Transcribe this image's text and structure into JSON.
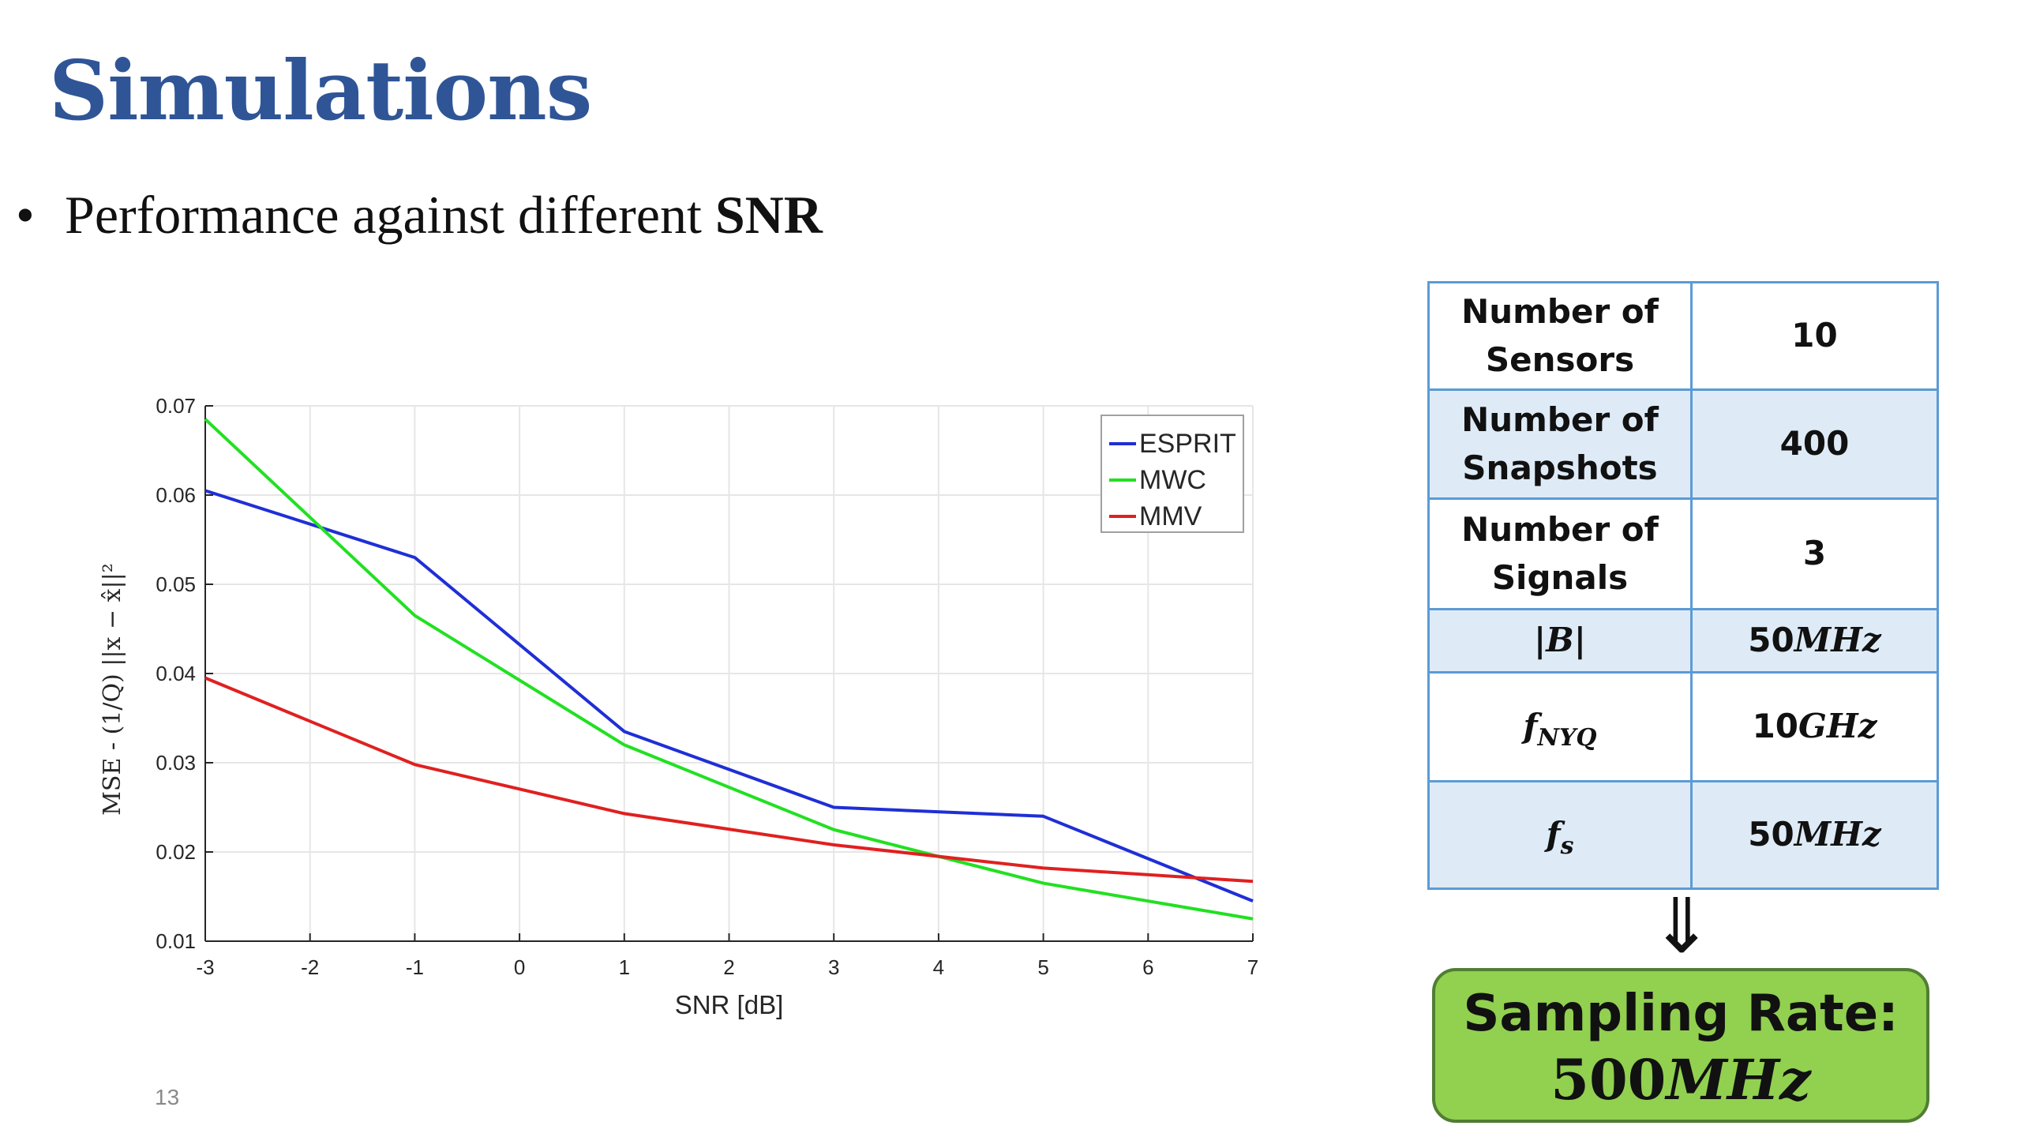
{
  "slide": {
    "title": "Simulations",
    "bullet_prefix": "Performance against different ",
    "bullet_emphasis": "SNR",
    "bullet_symbol": "•",
    "page_number": "13"
  },
  "params_table": {
    "rows": [
      {
        "label": "Number of Sensors",
        "value": "10"
      },
      {
        "label": "Number of Snapshots",
        "value": "400"
      },
      {
        "label": "Number of Signals",
        "value": "3"
      },
      {
        "label": "|B|",
        "value_num": "50",
        "value_unit": "MHz"
      },
      {
        "label_main": "f",
        "label_sub": "NYQ",
        "value_num": "10",
        "value_unit": "GHz"
      },
      {
        "label_main": "f",
        "label_sub": "s",
        "value_num": "50",
        "value_unit": "MHz"
      }
    ]
  },
  "arrow_symbol": "⇓",
  "result": {
    "label": "Sampling Rate:",
    "value_num": "500",
    "value_unit": "MHz"
  },
  "colors": {
    "title": "#2F5597",
    "table_border": "#5B9BD5",
    "table_shade": "#DEEBF7",
    "result_fill": "#92D050",
    "result_border": "#507E32",
    "esprit": "#1f2fd6",
    "mwc": "#22e022",
    "mmv": "#e02020"
  },
  "chart_data": {
    "type": "line",
    "xlabel": "SNR [dB]",
    "ylabel": "MSE - (1/Q) ||x − x̂||²",
    "xlim": [
      -3,
      7
    ],
    "ylim": [
      0.01,
      0.07
    ],
    "xticks": [
      -3,
      -2,
      -1,
      0,
      1,
      2,
      3,
      4,
      5,
      6,
      7
    ],
    "yticks": [
      0.01,
      0.02,
      0.03,
      0.04,
      0.05,
      0.06,
      0.07
    ],
    "ytick_labels": [
      "0.01",
      "0.02",
      "0.03",
      "0.04",
      "0.05",
      "0.06",
      "0.07"
    ],
    "grid": true,
    "legend_position": "top-right",
    "x": [
      -3,
      -1,
      1,
      3,
      5,
      7
    ],
    "series": [
      {
        "name": "ESPRIT",
        "color": "#1f2fd6",
        "values": [
          0.0605,
          0.053,
          0.0335,
          0.025,
          0.024,
          0.0145
        ]
      },
      {
        "name": "MWC",
        "color": "#22e022",
        "values": [
          0.0685,
          0.0465,
          0.032,
          0.0225,
          0.0165,
          0.0125
        ]
      },
      {
        "name": "MMV",
        "color": "#e02020",
        "values": [
          0.0395,
          0.0298,
          0.0243,
          0.0208,
          0.0182,
          0.0167
        ]
      }
    ]
  }
}
